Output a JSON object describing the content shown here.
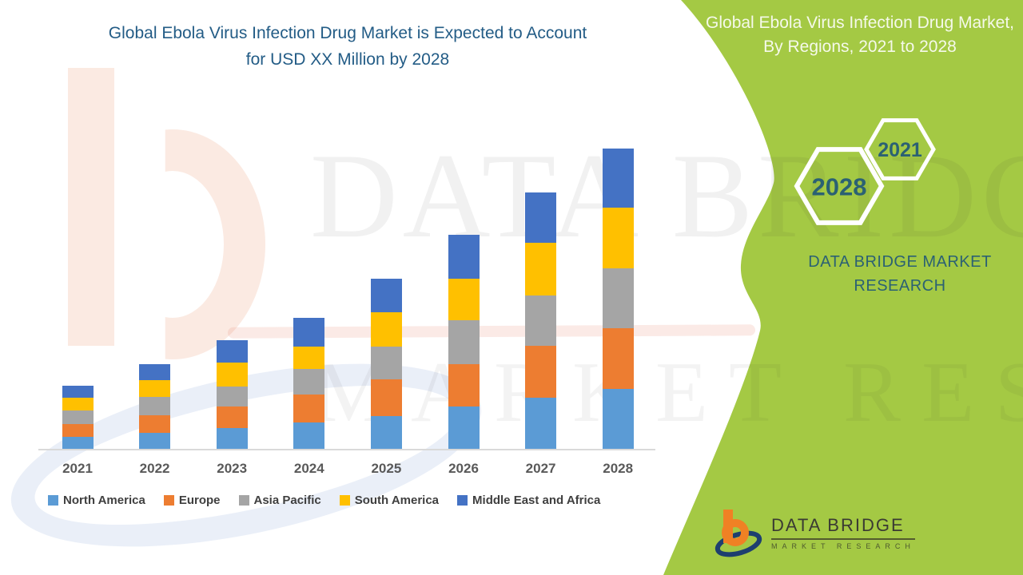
{
  "header": {
    "title": "Global Ebola Virus Infection Drug Market is Expected to Account for USD XX Million by 2028"
  },
  "panel": {
    "title": "Global Ebola Virus Infection Drug Market, By Regions, 2021 to 2028",
    "background_color": "#a4c944",
    "text_color": "#2b6173",
    "hexagons": {
      "start_year": "2021",
      "end_year": "2028"
    },
    "brand_line1": "DATA BRIDGE MARKET",
    "brand_line2": "RESEARCH"
  },
  "watermark": {
    "line1": "DATA BRIDGE",
    "line2": "MARKET RESEARCH"
  },
  "footer_logo": {
    "name": "DATA BRIDGE",
    "subtitle": "MARKET RESEARCH"
  },
  "chart_data": {
    "type": "bar",
    "stacked": true,
    "title": "Global Ebola Virus Infection Drug Market is Expected to Account for USD XX Million by 2028",
    "xlabel": "",
    "ylabel": "",
    "value_units": "relative units (y-axis not shown; values stated as USD XX Million)",
    "y_axis_visible": false,
    "grid": false,
    "legend_position": "bottom",
    "categories": [
      "2021",
      "2022",
      "2023",
      "2024",
      "2025",
      "2026",
      "2027",
      "2028"
    ],
    "series": [
      {
        "name": "North America",
        "color": "#5b9bd5",
        "values": [
          15,
          20,
          26,
          33,
          41,
          53,
          64,
          75
        ]
      },
      {
        "name": "Europe",
        "color": "#ed7d31",
        "values": [
          16,
          22,
          27,
          35,
          46,
          53,
          65,
          76
        ]
      },
      {
        "name": "Asia Pacific",
        "color": "#a5a5a5",
        "values": [
          17,
          23,
          25,
          32,
          41,
          55,
          63,
          75
        ]
      },
      {
        "name": "South America",
        "color": "#ffc000",
        "values": [
          16,
          21,
          30,
          28,
          43,
          52,
          66,
          76
        ]
      },
      {
        "name": "Middle East and Africa",
        "color": "#4472c4",
        "values": [
          15,
          20,
          28,
          36,
          42,
          55,
          63,
          74
        ]
      }
    ],
    "totals": [
      79,
      106,
      136,
      164,
      213,
      268,
      321,
      376
    ]
  }
}
